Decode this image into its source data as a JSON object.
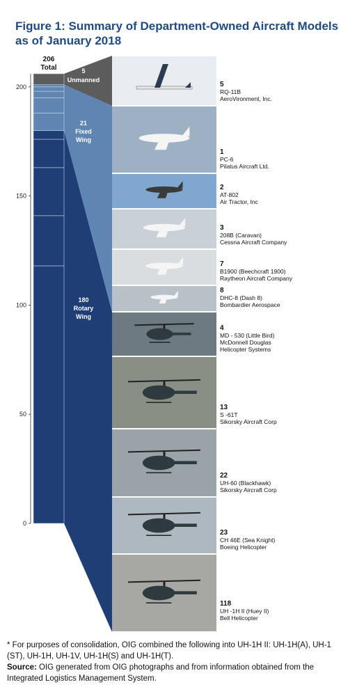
{
  "title_lines": [
    "Figure 1: Summary of Department-Owned Aircraft Models",
    "as of January 2018"
  ],
  "colors": {
    "title": "#1f4a86",
    "unmanned": "#5c5c5c",
    "fixed_wing": "#5f86b3",
    "rotary_wing": "#1f3e76",
    "bar_lines": "#c9d6e6",
    "axis": "#333333"
  },
  "chart_data": {
    "type": "bar",
    "total": {
      "value": 206,
      "label": "206",
      "sublabel": "Total"
    },
    "ylim": [
      0,
      206
    ],
    "yticks": [
      0,
      50,
      100,
      150,
      200
    ],
    "groups": [
      {
        "id": "unmanned",
        "count": "5",
        "name": "Unmanned",
        "value": 5
      },
      {
        "id": "fixed_wing",
        "count": "21",
        "name_lines": [
          "Fixed",
          "Wing"
        ],
        "value": 21
      },
      {
        "id": "rotary_wing",
        "count": "180",
        "name_lines": [
          "Rotary",
          "Wing"
        ],
        "value": 180
      }
    ],
    "items": [
      {
        "count": 5,
        "model": "RQ-11B",
        "maker": "AeroVironment, Inc.",
        "group": "unmanned",
        "photo_icon": "uav-photo-icon"
      },
      {
        "count": 1,
        "model": "PC-6",
        "maker": "Pilatus Aircraft Ltd.",
        "group": "fixed_wing",
        "photo_icon": "airplane-photo-icon"
      },
      {
        "count": 2,
        "model": "AT-802",
        "maker": "Air Tractor, Inc",
        "group": "fixed_wing",
        "photo_icon": "airplane-photo-icon"
      },
      {
        "count": 3,
        "model": "208B (Caravan)",
        "maker": "Cessna Aircraft Company",
        "group": "fixed_wing",
        "photo_icon": "airplane-photo-icon"
      },
      {
        "count": 7,
        "model": "B1900 (Beechcraft 1900)",
        "maker": "Raytheon Aircraft Company",
        "group": "fixed_wing",
        "photo_icon": "airplane-photo-icon"
      },
      {
        "count": 8,
        "model": "DHC-8 (Dash 8)",
        "maker": "Bombardier Aerospace",
        "group": "fixed_wing",
        "photo_icon": "airplane-photo-icon"
      },
      {
        "count": 4,
        "model": "MD - 530 (Little Bird)",
        "maker": "McDonnell Douglas Helicopter Systems",
        "maker_lines": [
          "McDonnell Douglas",
          "Helicopter Systems"
        ],
        "group": "rotary_wing",
        "photo_icon": "helicopter-photo-icon"
      },
      {
        "count": 13,
        "model": "S -61T",
        "maker": "Sikorsky Aircraft Corp",
        "group": "rotary_wing",
        "photo_icon": "helicopter-photo-icon"
      },
      {
        "count": 22,
        "model": "UH-60 (Blackhawk)",
        "maker": "Sikorsky Aircraft Corp",
        "group": "rotary_wing",
        "photo_icon": "helicopter-photo-icon"
      },
      {
        "count": 23,
        "model": "CH 46E (Sea Knight)",
        "maker": "Boeing Helicopter",
        "group": "rotary_wing",
        "photo_icon": "helicopter-photo-icon"
      },
      {
        "count": 118,
        "model": "UH -1H II (Huey II)",
        "maker": "Bell Helicopter",
        "group": "rotary_wing",
        "photo_icon": "helicopter-photo-icon"
      }
    ]
  },
  "footnote": "* For purposes of consolidation, OIG combined the following into UH-1H II: UH-1H(A), UH-1 (ST), UH-1H, UH-1V, UH-1H(S) and UH-1H(T).",
  "source_label": "Source:",
  "source_text": " OIG generated from OIG photographs and from information obtained from the Integrated Logistics Management System."
}
